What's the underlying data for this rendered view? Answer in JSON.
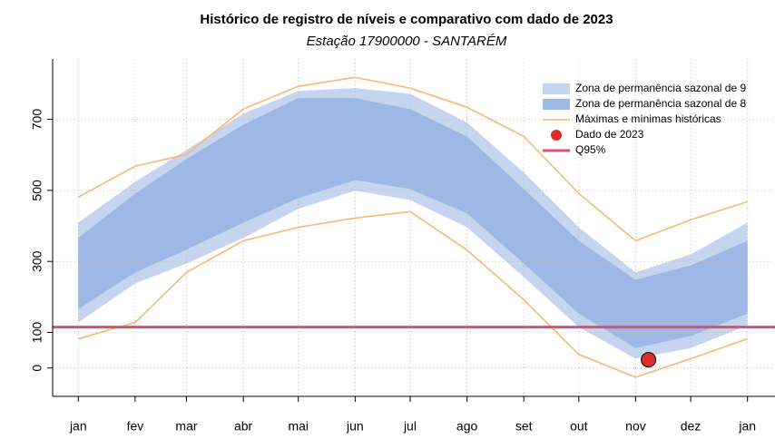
{
  "chart_data": {
    "type": "band-line",
    "title": "Histórico de registro de níveis e comparativo com dado de 2023",
    "subtitle": "Estação 17900000 - SANTARÉM",
    "x": [
      0,
      31,
      59,
      90,
      120,
      151,
      181,
      212,
      243,
      273,
      304,
      334,
      365
    ],
    "xlim": [
      -14,
      380
    ],
    "xticks": [
      {
        "value": 0,
        "label": "jan"
      },
      {
        "value": 31,
        "label": "fev"
      },
      {
        "value": 59,
        "label": "mar"
      },
      {
        "value": 90,
        "label": "abr"
      },
      {
        "value": 120,
        "label": "mai"
      },
      {
        "value": 151,
        "label": "jun"
      },
      {
        "value": 181,
        "label": "jul"
      },
      {
        "value": 212,
        "label": "ago"
      },
      {
        "value": 243,
        "label": "set"
      },
      {
        "value": 273,
        "label": "out"
      },
      {
        "value": 304,
        "label": "nov"
      },
      {
        "value": 334,
        "label": "dez"
      },
      {
        "value": 365,
        "label": "jan"
      }
    ],
    "ylim": [
      -80,
      870
    ],
    "yticks": [
      0,
      100,
      300,
      500,
      700
    ],
    "grid": true,
    "bands": [
      {
        "name": "Zona de permanência sazonal de 9",
        "color": "#c6d5ef",
        "upper": [
          409,
          524,
          614,
          716,
          780,
          788,
          772,
          691,
          550,
          396,
          269,
          320,
          409
        ],
        "lower": [
          128,
          238,
          294,
          366,
          448,
          499,
          473,
          396,
          256,
          115,
          26,
          56,
          120
        ]
      },
      {
        "name": "Zona de permanência sazonal de 8",
        "color": "#9db8e4",
        "upper": [
          366,
          491,
          588,
          685,
          760,
          760,
          729,
          652,
          504,
          358,
          248,
          289,
          358
        ],
        "lower": [
          166,
          269,
          333,
          409,
          478,
          529,
          504,
          435,
          294,
          153,
          56,
          90,
          153
        ]
      }
    ],
    "extremes": {
      "name": "Máximas e mínimas históricas",
      "color": "#f5b971",
      "max": [
        481,
        568,
        601,
        729,
        793,
        818,
        788,
        734,
        652,
        491,
        358,
        417,
        468
      ],
      "min": [
        82,
        128,
        269,
        358,
        396,
        422,
        440,
        332,
        192,
        38,
        -26,
        26,
        82
      ]
    },
    "point": {
      "name": "Dado de 2023",
      "color": "#d7302a",
      "x": 311,
      "y": 23
    },
    "hline": {
      "name": "Q95%",
      "color": "#d95073",
      "value": 115
    }
  }
}
